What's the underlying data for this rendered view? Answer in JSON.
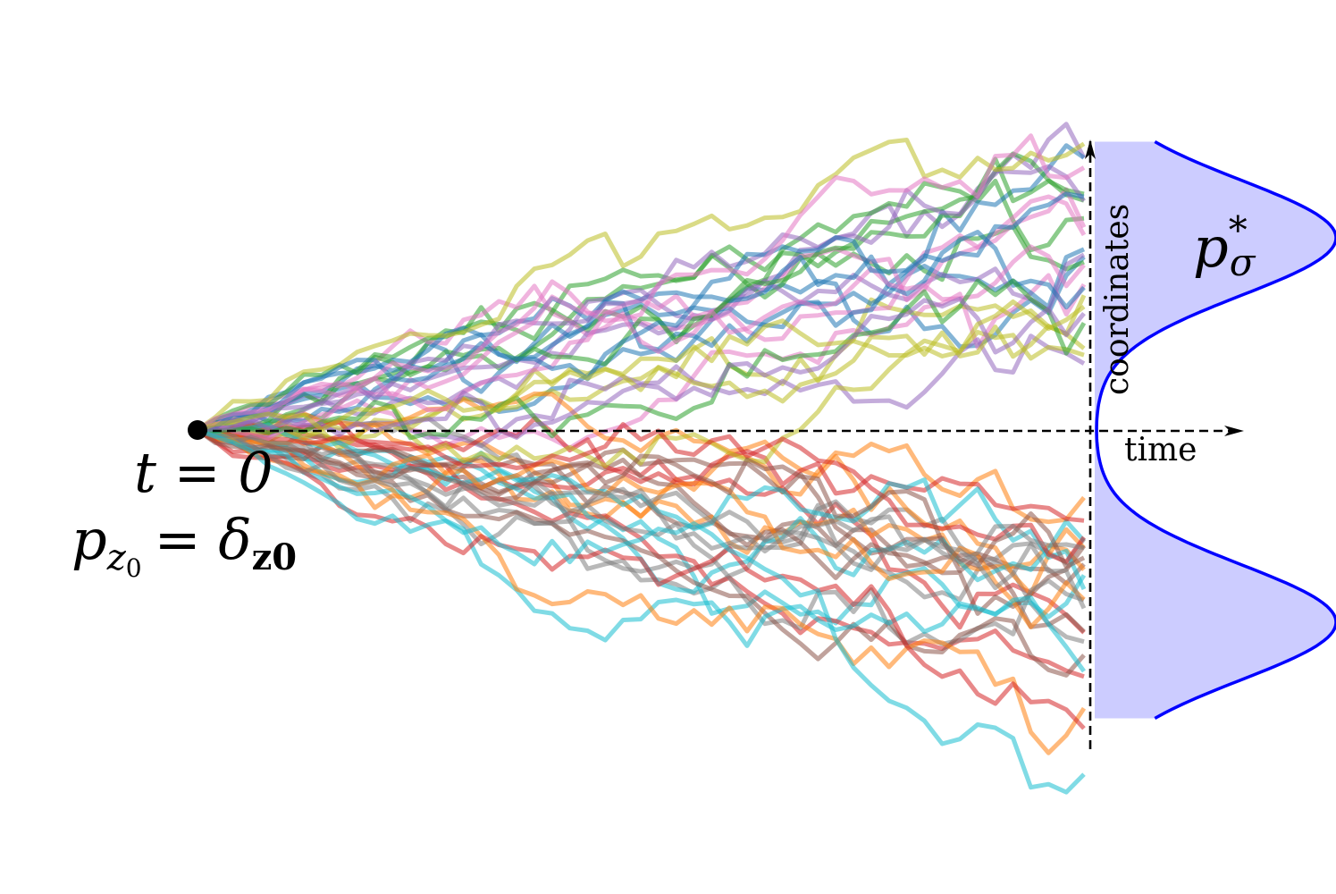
{
  "labels": {
    "start_time": "t = 0",
    "start_dist": "p_{z_0} = δ_{z0}",
    "start_dist_base": "p",
    "start_dist_sub": "z",
    "start_dist_subsub": "0",
    "start_dist_eq": "= δ",
    "start_dist_delta_sub": "z0",
    "target_dist": "p_σ^*",
    "target_base": "p",
    "target_sub": "σ",
    "target_sup": "*",
    "time_axis": "time",
    "coord_axis": "coordinates"
  },
  "diagram": {
    "start_point": {
      "t": 0,
      "z": 0
    },
    "trajectory_count": 50,
    "trajectory_steps": 50,
    "mode_locations": [
      1,
      -1
    ],
    "trajectory_colors": [
      "#1f77b4",
      "#ff7f0e",
      "#2ca02c",
      "#d62728",
      "#9467bd",
      "#8c564b",
      "#e377c2",
      "#7f7f7f",
      "#bcbd22",
      "#17becf"
    ],
    "density_curve_color": "#0000ff",
    "density_fill_color": "#ccccff"
  }
}
